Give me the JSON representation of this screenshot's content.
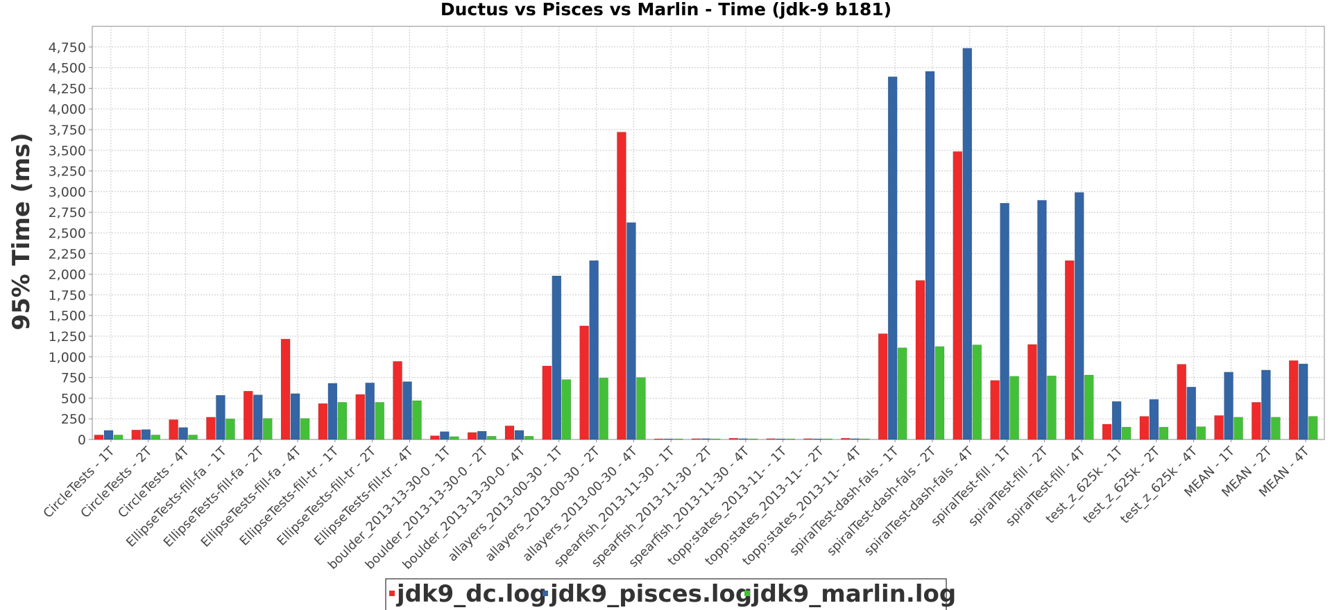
{
  "chart_data": {
    "type": "bar",
    "title": "Ductus vs Pisces vs Marlin - Time (jdk-9 b181)",
    "xlabel": "",
    "ylabel": "95% Time (ms)",
    "ylim": [
      0,
      5000
    ],
    "yticks": [
      "0",
      "250",
      "500",
      "750",
      "1,000",
      "1,250",
      "1,500",
      "1,750",
      "2,000",
      "2,250",
      "2,500",
      "2,750",
      "3,000",
      "3,250",
      "3,500",
      "3,750",
      "4,000",
      "4,250",
      "4,500",
      "4,750"
    ],
    "grid": true,
    "legend_position": "bottom",
    "categories": [
      "CircleTests - 1T",
      "CircleTests - 2T",
      "CircleTests - 4T",
      "EllipseTests-fill-fa - 1T",
      "EllipseTests-fill-fa - 2T",
      "EllipseTests-fill-fa - 4T",
      "EllipseTests-fill-tr - 1T",
      "EllipseTests-fill-tr - 2T",
      "EllipseTests-fill-tr - 4T",
      "boulder_2013-13-30-0 - 1T",
      "boulder_2013-13-30-0 - 2T",
      "boulder_2013-13-30-0 - 4T",
      "allayers_2013-00-30 - 1T",
      "allayers_2013-00-30 - 2T",
      "allayers_2013-00-30 - 4T",
      "spearfish_2013-11-30 - 1T",
      "spearfish_2013-11-30 - 2T",
      "spearfish_2013-11-30 - 4T",
      "topp:states_2013-11- - 1T",
      "topp:states_2013-11- - 2T",
      "topp:states_2013-11- - 4T",
      "spiralTest-dash-fals - 1T",
      "spiralTest-dash-fals - 2T",
      "spiralTest-dash-fals - 4T",
      "spiralTest-fill - 1T",
      "spiralTest-fill - 2T",
      "spiralTest-fill - 4T",
      "test_z_625k - 1T",
      "test_z_625k - 2T",
      "test_z_625k - 4T",
      "MEAN - 1T",
      "MEAN - 2T",
      "MEAN - 4T"
    ],
    "series": [
      {
        "name": "jdk9_dc.log",
        "color": "#ee2a2a",
        "values": [
          55,
          115,
          240,
          270,
          585,
          1215,
          435,
          545,
          945,
          45,
          85,
          165,
          890,
          1375,
          3720,
          5,
          10,
          15,
          10,
          10,
          15,
          1280,
          1925,
          3485,
          715,
          1150,
          2165,
          185,
          280,
          910,
          290,
          450,
          955
        ]
      },
      {
        "name": "jdk9_pisces.log",
        "color": "#3465a4",
        "values": [
          110,
          120,
          145,
          535,
          540,
          555,
          680,
          685,
          700,
          95,
          100,
          110,
          1980,
          2165,
          2625,
          5,
          10,
          10,
          5,
          5,
          10,
          4390,
          4455,
          4735,
          2860,
          2895,
          2990,
          460,
          485,
          635,
          815,
          840,
          915
        ]
      },
      {
        "name": "jdk9_marlin.log",
        "color": "#44c038",
        "values": [
          55,
          55,
          55,
          250,
          255,
          255,
          450,
          450,
          470,
          35,
          40,
          40,
          725,
          745,
          750,
          5,
          5,
          5,
          5,
          5,
          5,
          1110,
          1125,
          1145,
          765,
          770,
          780,
          150,
          150,
          155,
          270,
          270,
          280
        ]
      }
    ]
  }
}
